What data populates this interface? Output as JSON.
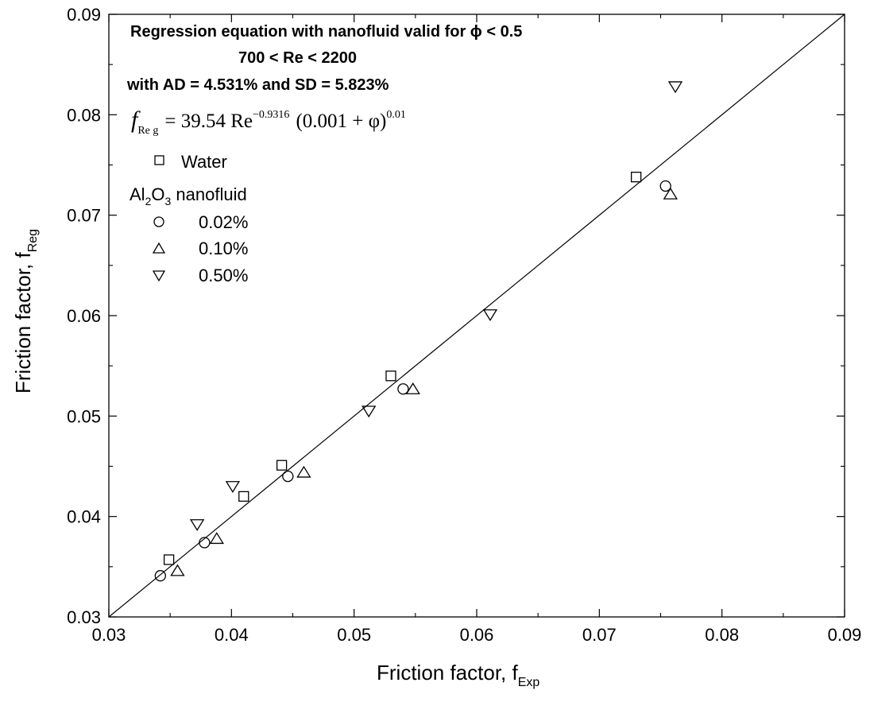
{
  "chart_data": {
    "type": "scatter",
    "xlabel": "Friction factor, f",
    "xlabel_sub": "Exp",
    "ylabel": "Friction factor, f",
    "ylabel_sub": "Reg",
    "xlim": [
      0.03,
      0.09
    ],
    "ylim": [
      0.03,
      0.09
    ],
    "xticks": [
      0.03,
      0.04,
      0.05,
      0.06,
      0.07,
      0.08,
      0.09
    ],
    "yticks": [
      0.03,
      0.04,
      0.05,
      0.06,
      0.07,
      0.08,
      0.09
    ],
    "grid": false,
    "reference_line": {
      "x": [
        0.03,
        0.09
      ],
      "y": [
        0.03,
        0.09
      ]
    },
    "annotations": {
      "line1": "Regression equation with nanofluid valid for ϕ < 0.5",
      "line2": "700 < Re < 2200",
      "line3": "with AD = 4.531% and SD = 5.823%"
    },
    "formula": {
      "lhs": "f",
      "lhs_sub": "Re g",
      "rhs_a": "= 39.54 Re",
      "rhs_exp1": "−0.9316",
      "rhs_b": "(0.001 + φ)",
      "rhs_exp2": "0.01"
    },
    "legend": {
      "placement": "top-left",
      "group_label_a": "Al",
      "group_label_sub1": "2",
      "group_label_b": "O",
      "group_label_sub2": "3",
      "group_label_c": " nanofluid"
    },
    "series": [
      {
        "name": "Water",
        "marker": "square",
        "points": [
          [
            0.0349,
            0.0357
          ],
          [
            0.041,
            0.042
          ],
          [
            0.0441,
            0.0451
          ],
          [
            0.053,
            0.054
          ],
          [
            0.073,
            0.0738
          ]
        ]
      },
      {
        "name": "0.02%",
        "marker": "circle",
        "points": [
          [
            0.0342,
            0.0341
          ],
          [
            0.0378,
            0.0374
          ],
          [
            0.0446,
            0.044
          ],
          [
            0.054,
            0.0527
          ],
          [
            0.0754,
            0.0729
          ]
        ]
      },
      {
        "name": "0.10%",
        "marker": "triangle-up",
        "points": [
          [
            0.0356,
            0.0346
          ],
          [
            0.0388,
            0.0378
          ],
          [
            0.0459,
            0.0444
          ],
          [
            0.0548,
            0.0527
          ],
          [
            0.0758,
            0.0721
          ]
        ]
      },
      {
        "name": "0.50%",
        "marker": "triangle-down",
        "points": [
          [
            0.0372,
            0.0392
          ],
          [
            0.0401,
            0.043
          ],
          [
            0.0512,
            0.0505
          ],
          [
            0.0611,
            0.0601
          ],
          [
            0.0762,
            0.0828
          ]
        ]
      }
    ]
  }
}
